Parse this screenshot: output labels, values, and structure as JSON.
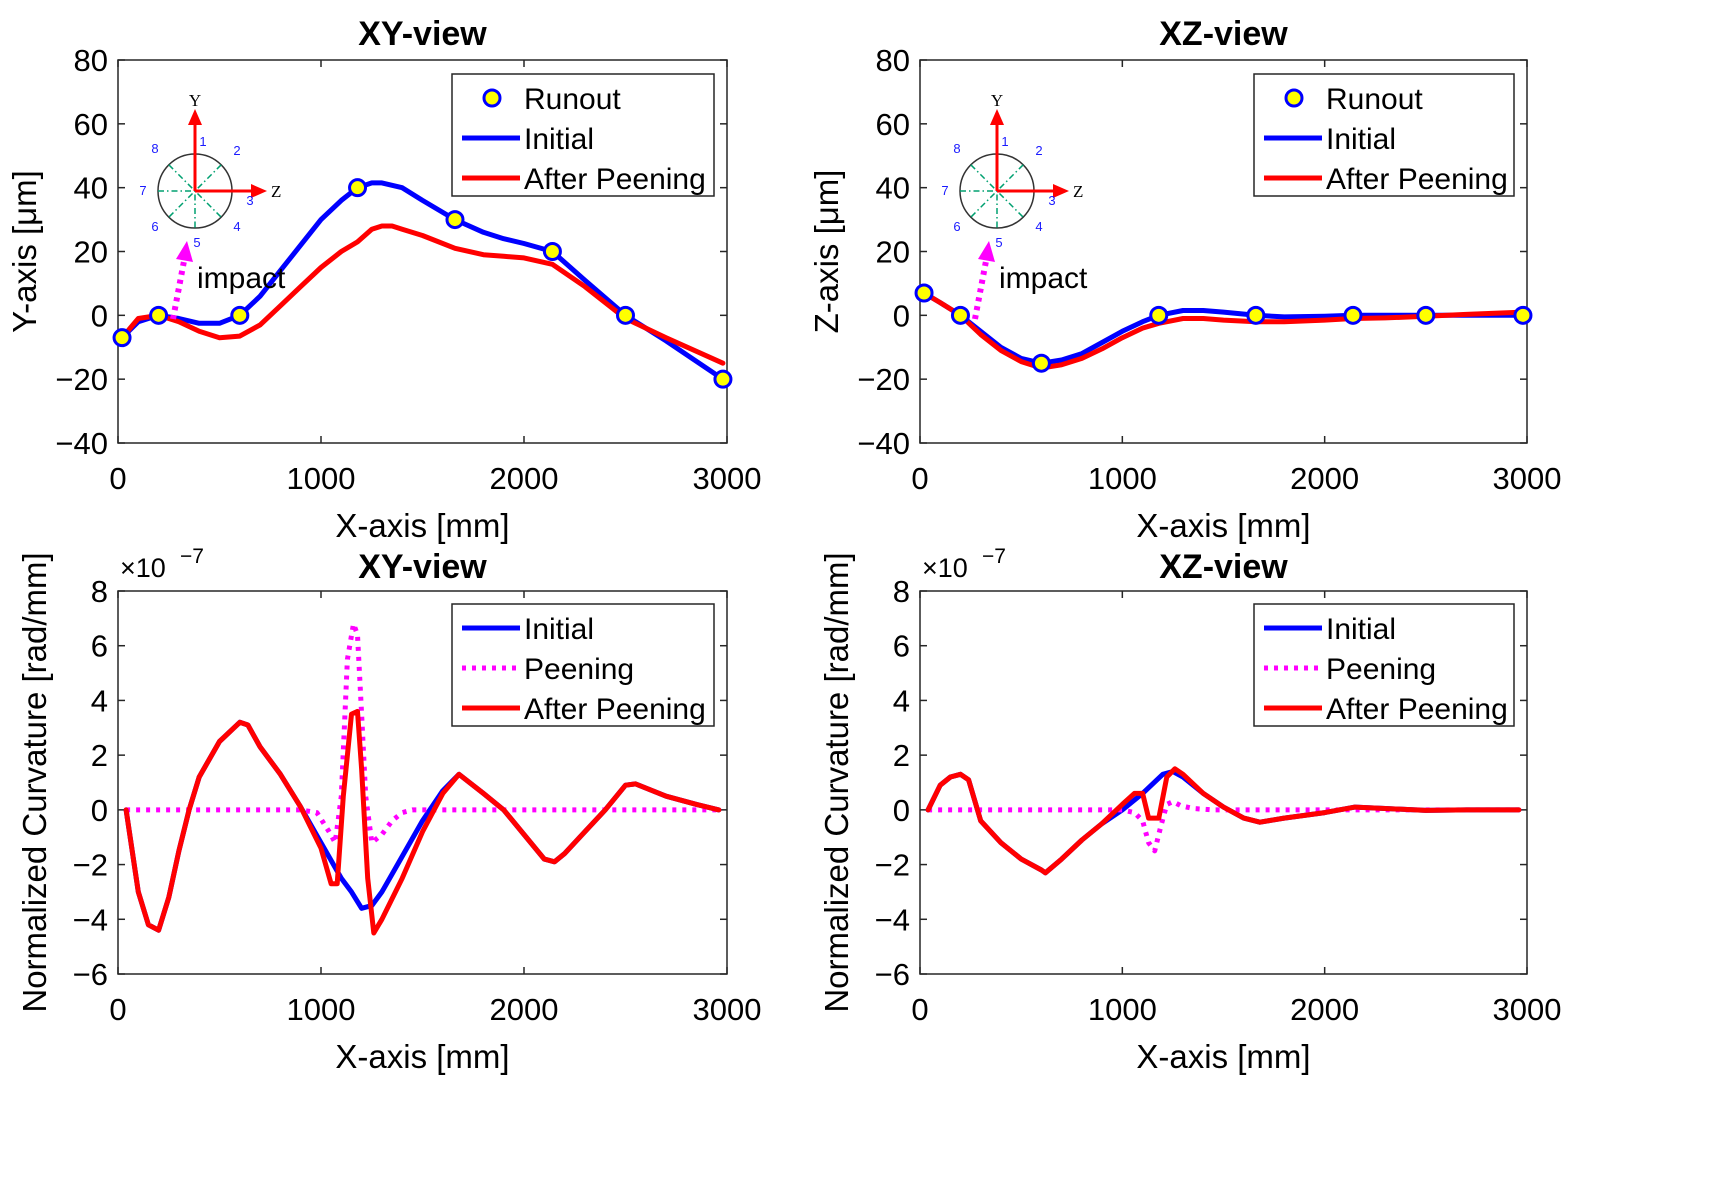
{
  "colors": {
    "initial": "#0000ff",
    "after": "#ff0000",
    "peening": "#ff00ff",
    "marker_fill": "#ffff00",
    "marker_edge": "#0000ff",
    "inset_arrow": "#ff0000",
    "inset_dash": "#00a070"
  },
  "chart_data": [
    {
      "type": "line",
      "title": "XY-view",
      "xlabel": "X-axis [mm]",
      "ylabel": "Y-axis [μm]",
      "xlim": [
        0,
        3000
      ],
      "ylim": [
        -40,
        80
      ],
      "xticks": [
        0,
        1000,
        2000,
        3000
      ],
      "yticks": [
        -40,
        -20,
        0,
        20,
        40,
        60,
        80
      ],
      "xtick_labels": [
        "0",
        "1000",
        "2000",
        "3000"
      ],
      "ytick_labels": [
        "−40",
        "−20",
        "0",
        "20",
        "40",
        "60",
        "80"
      ],
      "legend": {
        "position": "top-right",
        "entries": [
          "Runout",
          "Initial",
          "After Peening"
        ]
      },
      "inset": {
        "y_label": "Y",
        "z_label": "Z",
        "numbers": [
          "1",
          "2",
          "3",
          "4",
          "5",
          "6",
          "7",
          "8"
        ],
        "impact_label": "impact"
      },
      "series": [
        {
          "name": "Runout",
          "style": "markers",
          "x": [
            20,
            200,
            600,
            1180,
            1660,
            2140,
            2500,
            2980
          ],
          "y": [
            -7,
            0,
            0,
            40,
            30,
            20,
            0,
            -20
          ]
        },
        {
          "name": "Initial",
          "style": "line",
          "x": [
            20,
            100,
            200,
            300,
            400,
            500,
            600,
            700,
            800,
            900,
            1000,
            1100,
            1180,
            1250,
            1300,
            1400,
            1500,
            1660,
            1800,
            1900,
            2000,
            2140,
            2300,
            2500,
            2700,
            2980
          ],
          "y": [
            -7,
            -2,
            0,
            -1,
            -2.5,
            -2.5,
            0,
            6,
            14,
            22,
            30,
            36,
            40,
            41.5,
            41.5,
            40,
            36,
            30,
            26,
            24,
            22.5,
            20,
            11,
            0,
            -8,
            -20
          ]
        },
        {
          "name": "After Peening",
          "style": "line",
          "x": [
            20,
            100,
            200,
            300,
            400,
            500,
            600,
            700,
            800,
            900,
            1000,
            1100,
            1180,
            1250,
            1300,
            1350,
            1400,
            1500,
            1660,
            1800,
            1900,
            2000,
            2140,
            2300,
            2500,
            2700,
            2980
          ],
          "y": [
            -7,
            -1,
            0,
            -2,
            -5,
            -7,
            -6.5,
            -3,
            3,
            9,
            15,
            20,
            23,
            27,
            28,
            28,
            27,
            25,
            21,
            19,
            18.5,
            18,
            16,
            9,
            -1,
            -7,
            -15
          ]
        }
      ]
    },
    {
      "type": "line",
      "title": "XZ-view",
      "xlabel": "X-axis [mm]",
      "ylabel": "Z-axis [μm]",
      "xlim": [
        0,
        3000
      ],
      "ylim": [
        -40,
        80
      ],
      "xticks": [
        0,
        1000,
        2000,
        3000
      ],
      "yticks": [
        -40,
        -20,
        0,
        20,
        40,
        60,
        80
      ],
      "xtick_labels": [
        "0",
        "1000",
        "2000",
        "3000"
      ],
      "ytick_labels": [
        "−40",
        "−20",
        "0",
        "20",
        "40",
        "60",
        "80"
      ],
      "legend": {
        "position": "top-right",
        "entries": [
          "Runout",
          "Initial",
          "After Peening"
        ]
      },
      "inset": {
        "y_label": "Y",
        "z_label": "Z",
        "numbers": [
          "1",
          "2",
          "3",
          "4",
          "5",
          "6",
          "7",
          "8"
        ],
        "impact_label": "impact"
      },
      "series": [
        {
          "name": "Runout",
          "style": "markers",
          "x": [
            20,
            200,
            600,
            1180,
            1660,
            2140,
            2500,
            2980
          ],
          "y": [
            7,
            0,
            -15,
            0,
            0,
            0,
            0,
            0
          ]
        },
        {
          "name": "Initial",
          "style": "line",
          "x": [
            20,
            100,
            200,
            300,
            400,
            500,
            600,
            700,
            800,
            900,
            1000,
            1100,
            1180,
            1300,
            1400,
            1500,
            1660,
            1800,
            2000,
            2140,
            2300,
            2500,
            2700,
            2980
          ],
          "y": [
            7,
            4,
            0,
            -5,
            -10,
            -13.5,
            -15,
            -14,
            -12,
            -8.5,
            -5,
            -2,
            0,
            1.5,
            1.5,
            1,
            0,
            -0.5,
            -0.3,
            0,
            0,
            0,
            0,
            0
          ]
        },
        {
          "name": "After Peening",
          "style": "line",
          "x": [
            20,
            100,
            200,
            300,
            400,
            500,
            600,
            700,
            800,
            900,
            1000,
            1100,
            1180,
            1300,
            1400,
            1500,
            1660,
            1800,
            2000,
            2140,
            2300,
            2500,
            2700,
            2980
          ],
          "y": [
            7,
            4,
            0,
            -6,
            -11,
            -14.5,
            -16.5,
            -15.5,
            -13.5,
            -10.5,
            -7,
            -4,
            -2.5,
            -1,
            -1,
            -1.5,
            -2,
            -2,
            -1.5,
            -1,
            -0.8,
            -0.3,
            0.3,
            1
          ]
        }
      ]
    },
    {
      "type": "line",
      "title": "XY-view",
      "xlabel": "X-axis [mm]",
      "ylabel": "Normalized Curvature [rad/mm]",
      "exponent": "×10",
      "exponent_power": "−7",
      "xlim": [
        0,
        3000
      ],
      "ylim": [
        -6,
        8
      ],
      "xticks": [
        0,
        1000,
        2000,
        3000
      ],
      "yticks": [
        -6,
        -4,
        -2,
        0,
        2,
        4,
        6,
        8
      ],
      "xtick_labels": [
        "0",
        "1000",
        "2000",
        "3000"
      ],
      "ytick_labels": [
        "−6",
        "−4",
        "−2",
        "0",
        "2",
        "4",
        "6",
        "8"
      ],
      "legend": {
        "position": "top-right",
        "entries": [
          "Initial",
          "Peening",
          "After Peening"
        ]
      },
      "series": [
        {
          "name": "Initial",
          "style": "line",
          "x": [
            40,
            100,
            150,
            200,
            250,
            300,
            350,
            400,
            500,
            600,
            640,
            700,
            800,
            900,
            1000,
            1100,
            1150,
            1200,
            1250,
            1300,
            1400,
            1500,
            1600,
            1680,
            1800,
            1900,
            2000,
            2100,
            2150,
            2200,
            2300,
            2400,
            2500,
            2550,
            2700,
            2850,
            2960
          ],
          "y": [
            0,
            -3,
            -4.2,
            -4.4,
            -3.2,
            -1.5,
            0,
            1.2,
            2.5,
            3.2,
            3.1,
            2.3,
            1.3,
            0.1,
            -1.2,
            -2.5,
            -3,
            -3.6,
            -3.5,
            -3,
            -1.7,
            -0.4,
            0.7,
            1.3,
            0.6,
            0,
            -0.9,
            -1.8,
            -1.9,
            -1.6,
            -0.8,
            0,
            0.9,
            0.95,
            0.5,
            0.2,
            0
          ]
        },
        {
          "name": "Peening",
          "style": "dotted",
          "x": [
            40,
            900,
            980,
            1040,
            1070,
            1100,
            1130,
            1160,
            1180,
            1200,
            1220,
            1250,
            1300,
            1350,
            1400,
            1450,
            1500,
            2960
          ],
          "y": [
            0,
            0,
            -0.1,
            -0.8,
            -1.2,
            0.5,
            5.5,
            6.8,
            6.4,
            3.5,
            0.5,
            -1.2,
            -0.9,
            -0.4,
            -0.1,
            0,
            0,
            0
          ]
        },
        {
          "name": "After Peening",
          "style": "line",
          "x": [
            40,
            100,
            150,
            200,
            250,
            300,
            350,
            400,
            500,
            600,
            640,
            700,
            800,
            900,
            1000,
            1050,
            1080,
            1110,
            1150,
            1180,
            1200,
            1230,
            1260,
            1300,
            1400,
            1500,
            1600,
            1680,
            1800,
            1900,
            2000,
            2100,
            2150,
            2200,
            2300,
            2400,
            2500,
            2550,
            2700,
            2850,
            2960
          ],
          "y": [
            0,
            -3,
            -4.2,
            -4.4,
            -3.2,
            -1.5,
            0,
            1.2,
            2.5,
            3.2,
            3.1,
            2.3,
            1.3,
            0.1,
            -1.4,
            -2.7,
            -2.7,
            0.5,
            3.5,
            3.6,
            1.5,
            -2.5,
            -4.5,
            -4,
            -2.5,
            -0.8,
            0.6,
            1.3,
            0.6,
            0,
            -0.9,
            -1.8,
            -1.9,
            -1.6,
            -0.8,
            0,
            0.9,
            0.95,
            0.5,
            0.2,
            0
          ]
        }
      ]
    },
    {
      "type": "line",
      "title": "XZ-view",
      "xlabel": "X-axis [mm]",
      "ylabel": "Normalized Curvature [rad/mm]",
      "exponent": "×10",
      "exponent_power": "−7",
      "xlim": [
        0,
        3000
      ],
      "ylim": [
        -6,
        8
      ],
      "xticks": [
        0,
        1000,
        2000,
        3000
      ],
      "yticks": [
        -6,
        -4,
        -2,
        0,
        2,
        4,
        6,
        8
      ],
      "xtick_labels": [
        "0",
        "1000",
        "2000",
        "3000"
      ],
      "ytick_labels": [
        "−6",
        "−4",
        "−2",
        "0",
        "2",
        "4",
        "6",
        "8"
      ],
      "legend": {
        "position": "top-right",
        "entries": [
          "Initial",
          "Peening",
          "After Peening"
        ]
      },
      "series": [
        {
          "name": "Initial",
          "style": "line",
          "x": [
            40,
            100,
            150,
            200,
            240,
            300,
            400,
            500,
            600,
            620,
            700,
            800,
            900,
            1000,
            1100,
            1200,
            1250,
            1300,
            1400,
            1500,
            1600,
            1680,
            1800,
            2000,
            2150,
            2300,
            2500,
            2700,
            2960
          ],
          "y": [
            0,
            0.9,
            1.2,
            1.3,
            1.1,
            -0.4,
            -1.2,
            -1.8,
            -2.2,
            -2.3,
            -1.8,
            -1.1,
            -0.5,
            0,
            0.6,
            1.3,
            1.4,
            1.2,
            0.6,
            0.1,
            -0.3,
            -0.45,
            -0.3,
            -0.1,
            0.1,
            0.05,
            -0.02,
            0,
            0
          ]
        },
        {
          "name": "Peening",
          "style": "dotted",
          "x": [
            40,
            1000,
            1060,
            1100,
            1130,
            1160,
            1190,
            1220,
            1250,
            1290,
            1350,
            1450,
            2960
          ],
          "y": [
            0,
            0,
            -0.1,
            -0.4,
            -1.2,
            -1.5,
            -0.6,
            0.2,
            0.3,
            0.15,
            0.05,
            0,
            0
          ]
        },
        {
          "name": "After Peening",
          "style": "line",
          "x": [
            40,
            100,
            150,
            200,
            240,
            300,
            400,
            500,
            600,
            620,
            700,
            800,
            900,
            1000,
            1060,
            1100,
            1130,
            1180,
            1220,
            1260,
            1300,
            1400,
            1500,
            1600,
            1680,
            1800,
            2000,
            2150,
            2300,
            2500,
            2700,
            2960
          ],
          "y": [
            0,
            0.9,
            1.2,
            1.3,
            1.1,
            -0.4,
            -1.2,
            -1.8,
            -2.2,
            -2.3,
            -1.8,
            -1.1,
            -0.5,
            0.2,
            0.6,
            0.6,
            -0.3,
            -0.3,
            1.2,
            1.5,
            1.3,
            0.6,
            0.1,
            -0.3,
            -0.45,
            -0.3,
            -0.1,
            0.1,
            0.05,
            -0.02,
            0,
            0
          ]
        }
      ]
    }
  ]
}
